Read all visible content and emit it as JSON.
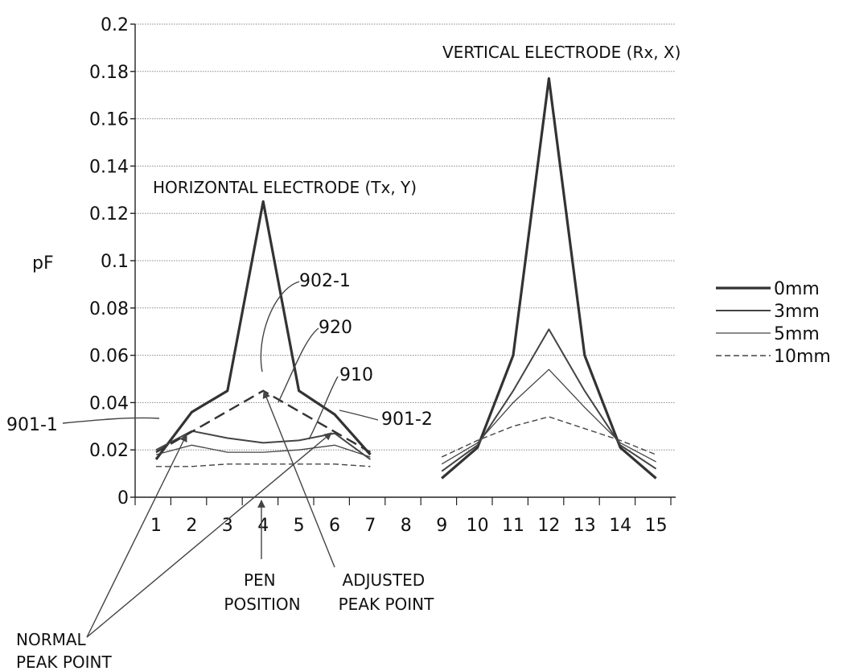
{
  "chart_data": {
    "type": "line",
    "title": "",
    "ylabel": "pF",
    "xlabel": "",
    "ylim": [
      0,
      0.2
    ],
    "yticks": [
      "0",
      "0.02",
      "0.04",
      "0.06",
      "0.08",
      "0.1",
      "0.12",
      "0.14",
      "0.16",
      "0.18",
      "0.2"
    ],
    "categories": [
      "1",
      "2",
      "3",
      "4",
      "5",
      "6",
      "7",
      "8",
      "9",
      "10",
      "11",
      "12",
      "13",
      "14",
      "15"
    ],
    "grid": true,
    "legend_position": "right",
    "groups": [
      {
        "label": "HORIZONTAL ELECTRODE (Tx, Y)",
        "x": [
          1,
          2,
          3,
          4,
          5,
          6,
          7
        ]
      },
      {
        "label": "VERTICAL ELECTRODE (Rx, X)",
        "x": [
          9,
          10,
          11,
          12,
          13,
          14,
          15
        ]
      }
    ],
    "series": [
      {
        "name": "0mm",
        "style": "solid-bold",
        "horizontal": [
          0.016,
          0.036,
          0.045,
          0.125,
          0.045,
          0.035,
          0.018
        ],
        "vertical": [
          0.008,
          0.021,
          0.06,
          0.177,
          0.06,
          0.021,
          0.008
        ]
      },
      {
        "name": "3mm",
        "style": "solid",
        "horizontal": [
          0.02,
          0.028,
          0.025,
          0.023,
          0.024,
          0.027,
          0.016
        ],
        "vertical": [
          0.011,
          0.022,
          0.045,
          0.071,
          0.045,
          0.022,
          0.012
        ]
      },
      {
        "name": "5mm",
        "style": "solid-thin",
        "horizontal": [
          0.018,
          0.022,
          0.019,
          0.019,
          0.02,
          0.022,
          0.017
        ],
        "vertical": [
          0.014,
          0.023,
          0.04,
          0.054,
          0.038,
          0.023,
          0.015
        ]
      },
      {
        "name": "10mm",
        "style": "dashed",
        "horizontal": [
          0.013,
          0.013,
          0.014,
          0.014,
          0.014,
          0.014,
          0.013
        ],
        "vertical": [
          0.017,
          0.024,
          0.03,
          0.034,
          0.029,
          0.024,
          0.018
        ]
      }
    ],
    "adjusted_curve": {
      "x": [
        1,
        4,
        7
      ],
      "y": [
        0.019,
        0.045,
        0.019
      ],
      "style": "dashed-bold"
    },
    "reference_labels": [
      "902-1",
      "920",
      "910",
      "901-1",
      "901-2"
    ],
    "annotations": {
      "pen_position": "PEN\nPOSITION",
      "adjusted_peak": "ADJUSTED\nPEAK POINT",
      "normal_peak": "NORMAL\nPEAK POINT"
    }
  }
}
